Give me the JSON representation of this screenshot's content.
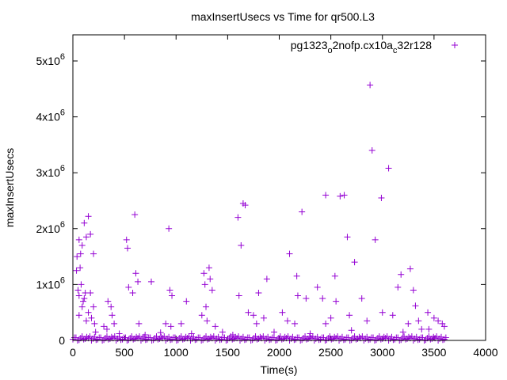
{
  "chart_data": {
    "type": "scatter",
    "title": "maxInsertUsecs vs Time for qr500.L3",
    "xlabel": "Time(s)",
    "ylabel": "maxInsertUsecs",
    "xlim": [
      0,
      4000
    ],
    "ylim": [
      0,
      5000000
    ],
    "x_ticks": [
      "0",
      "500",
      "1000",
      "1500",
      "2000",
      "2500",
      "3000",
      "3500",
      "4000"
    ],
    "x_tick_values": [
      0,
      500,
      1000,
      1500,
      2000,
      2500,
      3000,
      3500,
      4000
    ],
    "y_ticks": [
      {
        "value": 0,
        "mantissa": "0",
        "exp": ""
      },
      {
        "value": 1000000,
        "mantissa": "1x10",
        "exp": "6"
      },
      {
        "value": 2000000,
        "mantissa": "2x10",
        "exp": "6"
      },
      {
        "value": 3000000,
        "mantissa": "3x10",
        "exp": "6"
      },
      {
        "value": 4000000,
        "mantissa": "4x10",
        "exp": "6"
      },
      {
        "value": 5000000,
        "mantissa": "5x10",
        "exp": "6"
      }
    ],
    "grid": false,
    "legend_placement": "top-right",
    "series": [
      {
        "name": "pg1323_o2nofp.cx10a_c32r128",
        "legend_parts": [
          "pg1323",
          "o",
          "2nofp.cx10a",
          "c",
          "32r128"
        ],
        "color": "#9400d3",
        "marker": "plus",
        "points_units": "seconds, microseconds/1e6",
        "points": [
          [
            40,
            1.5
          ],
          [
            60,
            1.8
          ],
          [
            70,
            1.3
          ],
          [
            75,
            1.55
          ],
          [
            90,
            1.7
          ],
          [
            110,
            2.1
          ],
          [
            130,
            1.85
          ],
          [
            150,
            2.22
          ],
          [
            170,
            1.9
          ],
          [
            200,
            1.55
          ],
          [
            35,
            1.25
          ],
          [
            50,
            0.9
          ],
          [
            60,
            0.8
          ],
          [
            80,
            1.0
          ],
          [
            100,
            0.7
          ],
          [
            120,
            0.85
          ],
          [
            150,
            0.5
          ],
          [
            170,
            0.85
          ],
          [
            200,
            0.6
          ],
          [
            60,
            0.45
          ],
          [
            130,
            0.35
          ],
          [
            90,
            0.6
          ],
          [
            110,
            0.75
          ],
          [
            180,
            0.4
          ],
          [
            210,
            0.3
          ],
          [
            340,
            0.7
          ],
          [
            370,
            0.6
          ],
          [
            380,
            0.45
          ],
          [
            400,
            0.3
          ],
          [
            300,
            0.25
          ],
          [
            330,
            0.2
          ],
          [
            520,
            1.8
          ],
          [
            530,
            1.65
          ],
          [
            540,
            0.95
          ],
          [
            600,
            2.25
          ],
          [
            610,
            1.2
          ],
          [
            630,
            1.05
          ],
          [
            580,
            0.85
          ],
          [
            760,
            1.05
          ],
          [
            640,
            0.3
          ],
          [
            930,
            2.0
          ],
          [
            940,
            0.9
          ],
          [
            960,
            0.8
          ],
          [
            900,
            0.3
          ],
          [
            950,
            0.25
          ],
          [
            1100,
            0.7
          ],
          [
            1050,
            0.3
          ],
          [
            1270,
            1.2
          ],
          [
            1280,
            1.0
          ],
          [
            1320,
            1.3
          ],
          [
            1330,
            1.1
          ],
          [
            1350,
            0.9
          ],
          [
            1290,
            0.6
          ],
          [
            1250,
            0.45
          ],
          [
            1300,
            0.35
          ],
          [
            1380,
            0.25
          ],
          [
            1600,
            2.2
          ],
          [
            1650,
            2.45
          ],
          [
            1670,
            2.42
          ],
          [
            1630,
            1.7
          ],
          [
            1610,
            0.8
          ],
          [
            1700,
            0.5
          ],
          [
            1750,
            0.45
          ],
          [
            1800,
            0.85
          ],
          [
            1780,
            0.3
          ],
          [
            1880,
            1.1
          ],
          [
            1850,
            0.4
          ],
          [
            2030,
            0.5
          ],
          [
            2100,
            1.55
          ],
          [
            2170,
            1.15
          ],
          [
            2220,
            2.3
          ],
          [
            2180,
            0.8
          ],
          [
            2260,
            0.75
          ],
          [
            2080,
            0.35
          ],
          [
            2150,
            0.3
          ],
          [
            2370,
            0.95
          ],
          [
            2420,
            0.75
          ],
          [
            2450,
            2.6
          ],
          [
            2540,
            1.15
          ],
          [
            2590,
            2.58
          ],
          [
            2630,
            2.6
          ],
          [
            2660,
            1.85
          ],
          [
            2730,
            1.4
          ],
          [
            2550,
            0.7
          ],
          [
            2500,
            0.4
          ],
          [
            2450,
            0.3
          ],
          [
            2680,
            0.45
          ],
          [
            2800,
            0.75
          ],
          [
            2880,
            4.57
          ],
          [
            2900,
            3.4
          ],
          [
            2930,
            1.8
          ],
          [
            2990,
            2.55
          ],
          [
            3060,
            3.08
          ],
          [
            2850,
            0.35
          ],
          [
            3000,
            0.5
          ],
          [
            3100,
            0.45
          ],
          [
            3150,
            0.95
          ],
          [
            3180,
            1.18
          ],
          [
            3270,
            1.28
          ],
          [
            3300,
            0.9
          ],
          [
            3320,
            0.62
          ],
          [
            3250,
            0.3
          ],
          [
            3350,
            0.35
          ],
          [
            3380,
            0.2
          ],
          [
            3440,
            0.5
          ],
          [
            3500,
            0.4
          ],
          [
            3540,
            0.35
          ],
          [
            3580,
            0.3
          ],
          [
            3600,
            0.25
          ],
          [
            220,
            0.15
          ],
          [
            450,
            0.12
          ],
          [
            700,
            0.1
          ],
          [
            850,
            0.14
          ],
          [
            1150,
            0.12
          ],
          [
            1450,
            0.15
          ],
          [
            1550,
            0.1
          ],
          [
            1950,
            0.15
          ],
          [
            2300,
            0.12
          ],
          [
            2700,
            0.18
          ],
          [
            3200,
            0.15
          ],
          [
            3450,
            0.2
          ]
        ],
        "band_start": 0,
        "band_step": 30,
        "band_values": [
          0.02,
          0.05,
          0.01,
          0.07,
          0.03,
          0.04,
          0.0,
          0.06,
          0.02,
          0.05,
          0.01,
          0.07,
          0.03,
          0.04,
          0.0,
          0.06,
          0.02,
          0.05,
          0.01,
          0.07,
          0.03,
          0.04,
          0.0,
          0.06,
          0.02,
          0.05,
          0.01,
          0.07,
          0.03,
          0.04,
          0.0,
          0.06,
          0.02,
          0.05,
          0.01,
          0.07,
          0.03,
          0.04,
          0.0,
          0.06,
          0.02,
          0.05,
          0.01,
          0.07,
          0.03,
          0.04,
          0.0,
          0.06,
          0.02,
          0.05,
          0.01,
          0.07,
          0.03,
          0.04,
          0.0,
          0.06,
          0.02,
          0.05,
          0.01,
          0.07,
          0.03,
          0.04,
          0.0,
          0.06,
          0.02,
          0.05,
          0.01,
          0.07,
          0.03,
          0.04,
          0.0,
          0.06,
          0.02,
          0.05,
          0.01,
          0.07,
          0.03,
          0.04,
          0.0,
          0.06,
          0.02,
          0.05,
          0.01,
          0.07,
          0.03,
          0.04,
          0.0,
          0.06,
          0.02,
          0.05,
          0.01,
          0.07,
          0.03,
          0.04,
          0.0,
          0.06,
          0.02,
          0.05,
          0.01,
          0.07,
          0.03,
          0.04,
          0.0,
          0.06,
          0.02,
          0.05,
          0.01,
          0.07,
          0.03,
          0.04,
          0.0,
          0.06,
          0.02,
          0.05,
          0.01,
          0.07,
          0.03,
          0.04,
          0.0,
          0.06,
          0.02
        ]
      }
    ]
  }
}
